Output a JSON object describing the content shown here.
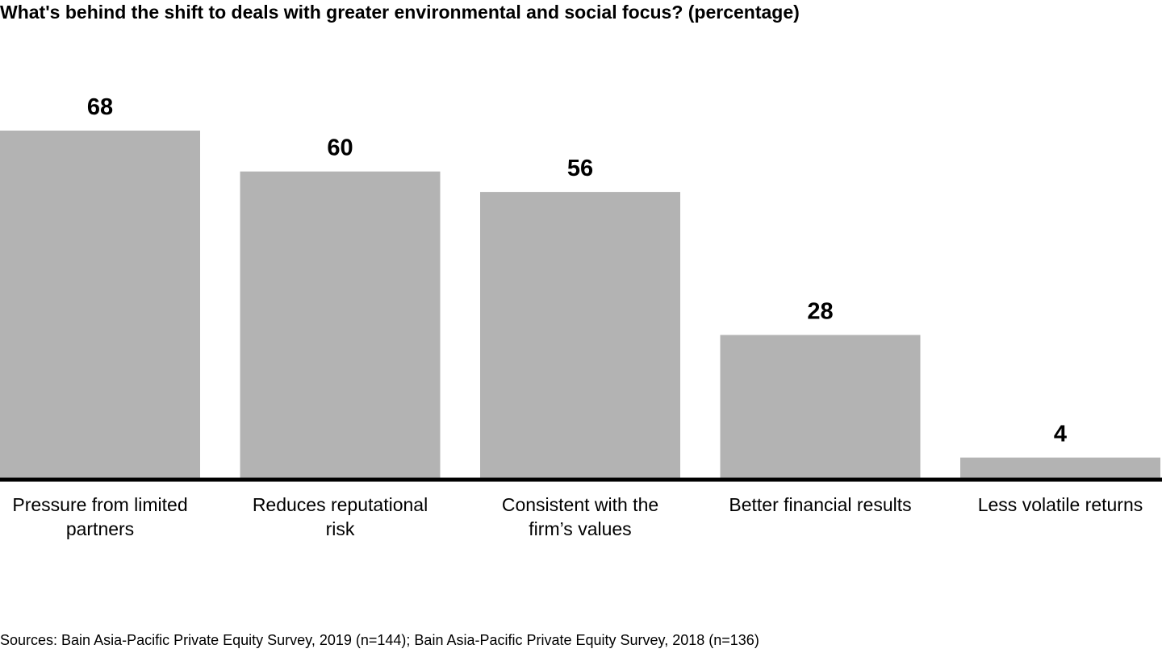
{
  "chart_data": {
    "type": "bar",
    "title": "What's behind the shift to deals with greater environmental and social focus? (percentage)",
    "categories": [
      "Pressure from limited partners",
      "Reduces reputational risk",
      "Consistent with the firm’s values",
      "Better financial results",
      "Less volatile returns"
    ],
    "values": [
      68,
      60,
      56,
      28,
      4
    ],
    "xlabel": "",
    "ylabel": "",
    "ylim": [
      0,
      100
    ],
    "grid": false,
    "legend": "none",
    "bar_color": "#b3b3b3",
    "baseline_color": "#000000"
  },
  "source": "Sources: Bain Asia-Pacific Private Equity Survey, 2019 (n=144); Bain Asia-Pacific Private Equity Survey, 2018 (n=136)"
}
